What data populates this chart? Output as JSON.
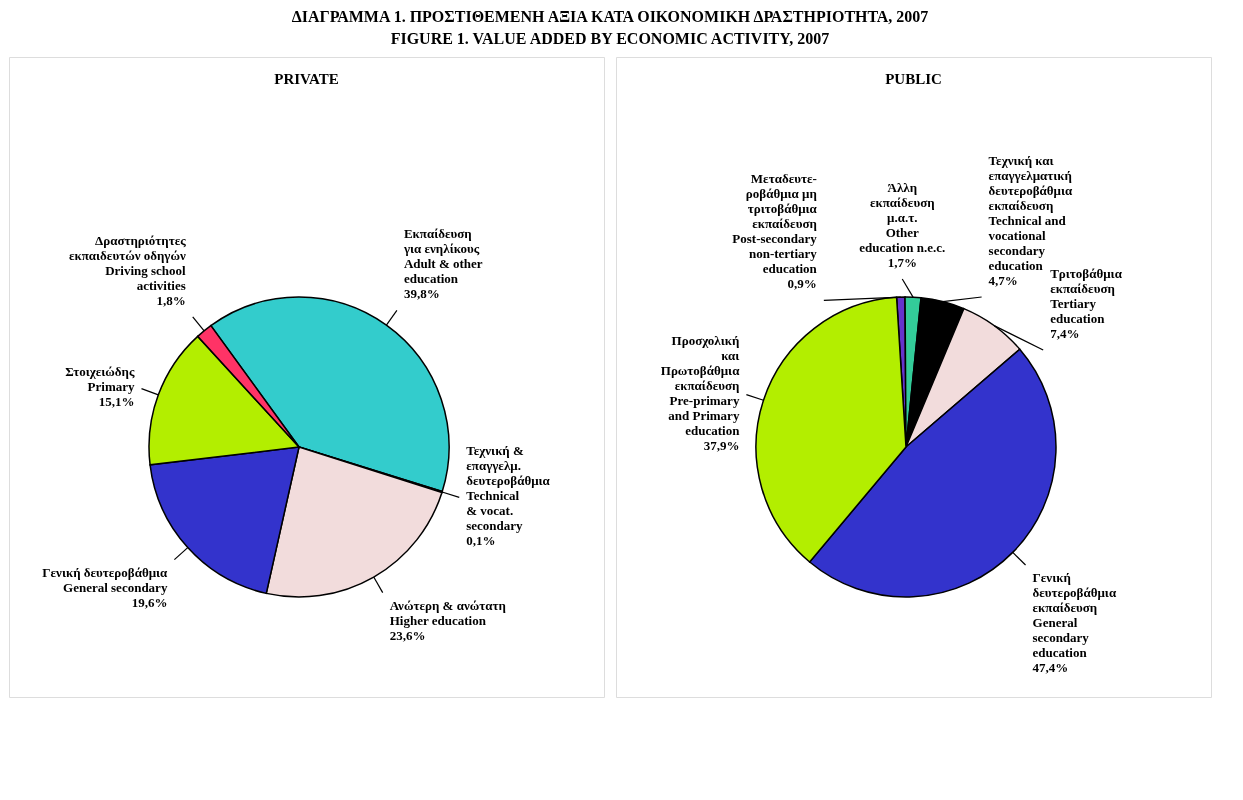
{
  "chart_data": [
    {
      "type": "pie",
      "title": "PRIVATE",
      "annotations": [
        "ΔΙΑΓΡΑΜΜΑ 1. ΠΡΟΣΤΙΘΕΜΕΝΗ ΑΞΙΑ ΚΑΤΑ ΟΙΚΟΝΟΜΙΚΗ ΔΡΑΣΤΗΡΙΟΤΗΤΑ, 2007",
        "FIGURE 1. VALUE ADDED BY ECONOMIC ACTIVITY, 2007"
      ],
      "categories": [
        "Εκπαίδευση\nγια ενηλίκους\nAdult & other\neducation",
        "Τεχνική &\nεπαγγελμ.\nδευτεροβάθμια\nTechnical\n& vocat.\nsecondary",
        "Ανώτερη & ανώτατη\nHigher education",
        "Γενική δευτεροβάθμια\nGeneral secondary",
        "Στοιχειώδης\nPrimary",
        "Δραστηριότητες\nεκπαιδευτών οδηγών\nDriving school\nactivities"
      ],
      "values": [
        39.8,
        0.1,
        23.6,
        19.6,
        15.1,
        1.8
      ],
      "value_labels": [
        "39,8%",
        "0,1%",
        "23,6%",
        "19,6%",
        "15,1%",
        "1,8%"
      ],
      "colors": [
        "#33cccc",
        "#000000",
        "#f2dcdc",
        "#3333cc",
        "#b3ee00",
        "#ff3366"
      ],
      "legend": false
    },
    {
      "type": "pie",
      "title": "PUBLIC",
      "categories": [
        "Μεταδευτε-\nροβάθμια μη\nτριτοβάθμια\nεκπαίδευση\nPost-secondary\nnon-tertiary\neducation",
        "Άλλη\nεκπαίδευση\nμ.α.τ.\nOther\neducation n.e.c.",
        "Τεχνική και\nεπαγγελματική\nδευτεροβάθμια\nεκπαίδευση\nTechnical and\nvocational\nsecondary\neducation",
        "Τριτοβάθμια\nεκπαίδευση\nTertiary\neducation",
        "Γενική\nδευτεροβάθμια\nεκπαίδευση\nGeneral\nsecondary\neducation",
        "Προσχολική\nκαι\nΠρωτοβάθμια\nεκπαίδευση\nPre-primary\nand Primary\neducation"
      ],
      "values": [
        0.9,
        1.7,
        4.7,
        7.4,
        47.4,
        37.9
      ],
      "value_labels": [
        "0,9%",
        "1,7%",
        "4,7%",
        "7,4%",
        "47,4%",
        "37,9%"
      ],
      "colors": [
        "#6633cc",
        "#33cc99",
        "#000000",
        "#f2dcdc",
        "#3333cc",
        "#b3ee00"
      ],
      "legend": false
    }
  ]
}
